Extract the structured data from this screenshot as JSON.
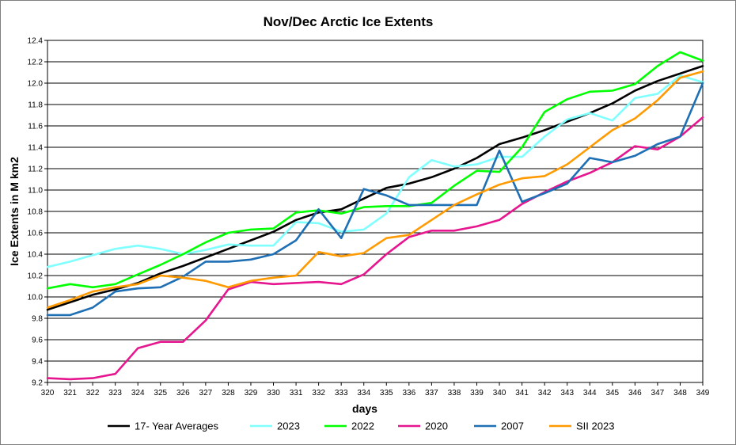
{
  "chart_data": {
    "type": "line",
    "title": "Nov/Dec Arctic Ice Extents",
    "xlabel": "days",
    "ylabel": "Ice Extents in M km2",
    "xlim": [
      320,
      349
    ],
    "ylim": [
      9.2,
      12.4
    ],
    "ytick_step": 0.2,
    "x": [
      320,
      321,
      322,
      323,
      324,
      325,
      326,
      327,
      328,
      329,
      330,
      331,
      332,
      333,
      334,
      335,
      336,
      337,
      338,
      339,
      340,
      341,
      342,
      343,
      344,
      345,
      346,
      347,
      348,
      349
    ],
    "grid": true,
    "legend_position": "bottom",
    "series": [
      {
        "name": "17- Year Averages",
        "color": "#000000",
        "values": [
          9.88,
          9.95,
          10.02,
          10.07,
          10.13,
          10.22,
          10.29,
          10.37,
          10.45,
          10.53,
          10.61,
          10.72,
          10.79,
          10.82,
          10.92,
          11.02,
          11.06,
          11.12,
          11.2,
          11.3,
          11.43,
          11.49,
          11.56,
          11.64,
          11.72,
          11.81,
          11.93,
          12.02,
          12.09,
          12.16
        ]
      },
      {
        "name": "2023",
        "color": "#80ffff",
        "values": [
          10.28,
          10.33,
          10.39,
          10.45,
          10.48,
          10.45,
          10.4,
          10.44,
          10.49,
          10.48,
          10.48,
          10.7,
          10.69,
          10.61,
          10.63,
          10.78,
          11.12,
          11.28,
          11.22,
          11.24,
          11.31,
          11.31,
          11.5,
          11.66,
          11.72,
          11.65,
          11.86,
          11.9,
          12.07,
          12.01
        ]
      },
      {
        "name": "2022",
        "color": "#00ff00",
        "values": [
          10.08,
          10.12,
          10.09,
          10.12,
          10.21,
          10.3,
          10.4,
          10.51,
          10.6,
          10.63,
          10.64,
          10.79,
          10.81,
          10.78,
          10.84,
          10.85,
          10.85,
          10.88,
          11.04,
          11.18,
          11.17,
          11.4,
          11.73,
          11.85,
          11.92,
          11.93,
          11.99,
          12.16,
          12.29,
          12.21
        ]
      },
      {
        "name": "2020",
        "color": "#e6168f",
        "values": [
          9.24,
          9.23,
          9.24,
          9.28,
          9.52,
          9.58,
          9.58,
          9.78,
          10.07,
          10.14,
          10.12,
          10.13,
          10.14,
          10.12,
          10.21,
          10.4,
          10.56,
          10.62,
          10.62,
          10.66,
          10.72,
          10.87,
          10.98,
          11.08,
          11.16,
          11.26,
          11.41,
          11.38,
          11.5,
          11.68
        ]
      },
      {
        "name": "2007",
        "color": "#1f6fb5",
        "values": [
          9.83,
          9.83,
          9.9,
          10.05,
          10.08,
          10.09,
          10.19,
          10.33,
          10.33,
          10.35,
          10.4,
          10.53,
          10.82,
          10.55,
          11.01,
          10.95,
          10.86,
          10.86,
          10.86,
          10.86,
          11.37,
          10.89,
          10.97,
          11.06,
          11.3,
          11.26,
          11.32,
          11.43,
          11.5,
          12.0
        ]
      },
      {
        "name": "SII 2023",
        "color": "#ff9a00",
        "values": [
          9.9,
          9.97,
          10.05,
          10.09,
          10.12,
          10.2,
          10.18,
          10.15,
          10.09,
          10.15,
          10.18,
          10.2,
          10.42,
          10.38,
          10.41,
          10.55,
          10.58,
          10.72,
          10.86,
          10.96,
          11.05,
          11.11,
          11.13,
          11.24,
          11.4,
          11.56,
          11.67,
          11.84,
          12.05,
          12.11
        ]
      }
    ]
  }
}
